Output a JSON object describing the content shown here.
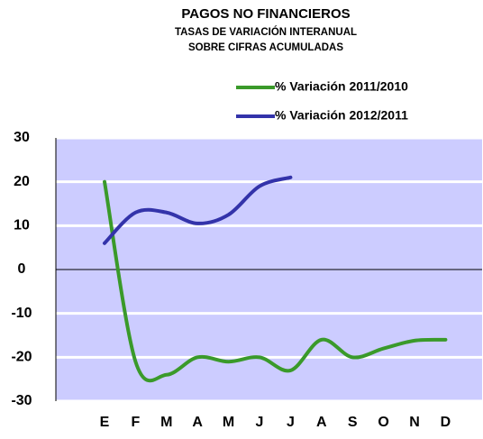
{
  "chart_data": {
    "type": "line",
    "title": "PAGOS NO FINANCIEROS",
    "subtitle": [
      "TASAS DE VARIACIÓN INTERANUAL",
      "SOBRE CIFRAS ACUMULADAS"
    ],
    "categories": [
      "E",
      "F",
      "M",
      "A",
      "M",
      "J",
      "J",
      "A",
      "S",
      "O",
      "N",
      "D"
    ],
    "series": [
      {
        "name": "% Variación 2011/2010",
        "color": "#3a9a2a",
        "values": [
          20,
          -21,
          -24,
          -20,
          -21,
          -20,
          -23,
          -16,
          -20,
          -18,
          -16.2,
          -16
        ]
      },
      {
        "name": "% Variación 2012/2011",
        "color": "#3333aa",
        "values": [
          6,
          13,
          13,
          10.5,
          12.5,
          19,
          21,
          null,
          null,
          null,
          null,
          null
        ]
      }
    ],
    "ylim": [
      -30,
      30
    ],
    "yticks": [
      -30,
      -20,
      -10,
      0,
      10,
      20,
      30
    ],
    "grid": true,
    "background": "#ccccff"
  }
}
